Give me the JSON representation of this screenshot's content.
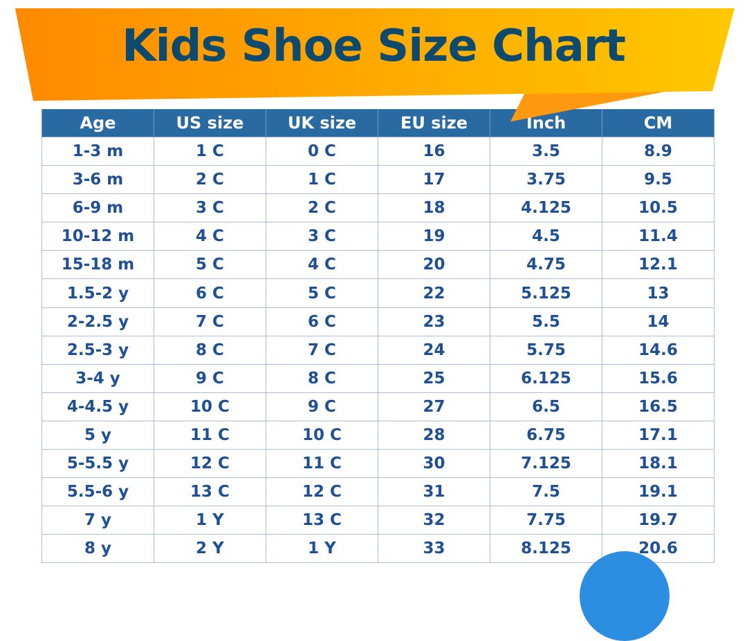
{
  "title": "Kids Shoe Size Chart",
  "colors": {
    "banner_start": "#ff8a00",
    "banner_end": "#ffc800",
    "title": "#0e4a6e",
    "header_bg": "#2a6aa2",
    "cell_text": "#1f4f94"
  },
  "table": {
    "headers": [
      "Age",
      "US size",
      "UK size",
      "EU size",
      "Inch",
      "CM"
    ],
    "rows": [
      [
        "1-3 m",
        "1 C",
        "0 C",
        "16",
        "3.5",
        "8.9"
      ],
      [
        "3-6 m",
        "2 C",
        "1 C",
        "17",
        "3.75",
        "9.5"
      ],
      [
        "6-9 m",
        "3 C",
        "2 C",
        "18",
        "4.125",
        "10.5"
      ],
      [
        "10-12 m",
        "4 C",
        "3 C",
        "19",
        "4.5",
        "11.4"
      ],
      [
        "15-18 m",
        "5 C",
        "4 C",
        "20",
        "4.75",
        "12.1"
      ],
      [
        "1.5-2 y",
        "6 C",
        "5 C",
        "22",
        "5.125",
        "13"
      ],
      [
        "2-2.5 y",
        "7 C",
        "6 C",
        "23",
        "5.5",
        "14"
      ],
      [
        "2.5-3 y",
        "8 C",
        "7 C",
        "24",
        "5.75",
        "14.6"
      ],
      [
        "3-4 y",
        "9 C",
        "8 C",
        "25",
        "6.125",
        "15.6"
      ],
      [
        "4-4.5 y",
        "10 C",
        "9 C",
        "27",
        "6.5",
        "16.5"
      ],
      [
        "5 y",
        "11 C",
        "10 C",
        "28",
        "6.75",
        "17.1"
      ],
      [
        "5-5.5 y",
        "12 C",
        "11 C",
        "30",
        "7.125",
        "18.1"
      ],
      [
        "5.5-6 y",
        "13 C",
        "12 C",
        "31",
        "7.5",
        "19.1"
      ],
      [
        "7 y",
        "1 Y",
        "13 C",
        "32",
        "7.75",
        "19.7"
      ],
      [
        "8 y",
        "2 Y",
        "1 Y",
        "33",
        "8.125",
        "20.6"
      ]
    ]
  }
}
